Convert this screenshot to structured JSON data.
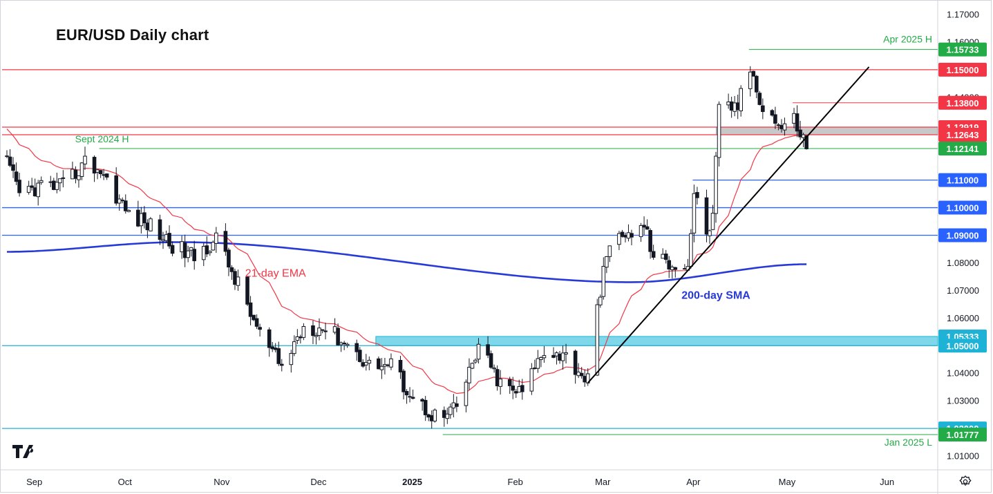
{
  "chart_data": {
    "type": "candlestick",
    "title": "EUR/USD Daily chart",
    "ylim": [
      1.005,
      1.1745
    ],
    "y_ticks": [
      "1.17000",
      "1.16000",
      "1.15000",
      "1.14000",
      "1.13000",
      "1.12000",
      "1.11000",
      "1.10000",
      "1.09000",
      "1.08000",
      "1.07000",
      "1.06000",
      "1.05000",
      "1.04000",
      "1.03000",
      "1.02000",
      "1.01000"
    ],
    "x_ticks": [
      {
        "label": "Sep",
        "date": "2024-09-02",
        "bold": false
      },
      {
        "label": "Oct",
        "date": "2024-10-01",
        "bold": false
      },
      {
        "label": "Nov",
        "date": "2024-11-01",
        "bold": false
      },
      {
        "label": "Dec",
        "date": "2024-12-02",
        "bold": false
      },
      {
        "label": "2025",
        "date": "2025-01-01",
        "bold": true
      },
      {
        "label": "Feb",
        "date": "2025-02-03",
        "bold": false
      },
      {
        "label": "Mar",
        "date": "2025-03-03",
        "bold": false
      },
      {
        "label": "Apr",
        "date": "2025-04-01",
        "bold": false
      },
      {
        "label": "May",
        "date": "2025-05-01",
        "bold": false
      },
      {
        "label": "Jun",
        "date": "2025-06-02",
        "bold": false
      }
    ],
    "x_start": "2024-08-26",
    "x_end": "2025-05-09",
    "candle_anchors": [
      {
        "date": "2024-08-26",
        "close": 1.116
      },
      {
        "date": "2024-08-30",
        "close": 1.105
      },
      {
        "date": "2024-09-06",
        "close": 1.108
      },
      {
        "date": "2024-09-13",
        "close": 1.1075
      },
      {
        "date": "2024-09-20",
        "close": 1.1165
      },
      {
        "date": "2024-09-25",
        "close": 1.1135
      },
      {
        "date": "2024-10-04",
        "close": 1.0975
      },
      {
        "date": "2024-10-11",
        "close": 1.0935
      },
      {
        "date": "2024-10-18",
        "close": 1.0865
      },
      {
        "date": "2024-10-25",
        "close": 1.082
      },
      {
        "date": "2024-11-01",
        "close": 1.089
      },
      {
        "date": "2024-11-08",
        "close": 1.072
      },
      {
        "date": "2024-11-15",
        "close": 1.054
      },
      {
        "date": "2024-11-22",
        "close": 1.042
      },
      {
        "date": "2024-11-29",
        "close": 1.057
      },
      {
        "date": "2024-12-06",
        "close": 1.0565
      },
      {
        "date": "2024-12-13",
        "close": 1.0505
      },
      {
        "date": "2024-12-20",
        "close": 1.043
      },
      {
        "date": "2024-12-27",
        "close": 1.043
      },
      {
        "date": "2025-01-03",
        "close": 1.031
      },
      {
        "date": "2025-01-10",
        "close": 1.0245
      },
      {
        "date": "2025-01-13",
        "close": 1.024
      },
      {
        "date": "2025-01-17",
        "close": 1.0275
      },
      {
        "date": "2025-01-24",
        "close": 1.0495
      },
      {
        "date": "2025-01-31",
        "close": 1.036
      },
      {
        "date": "2025-02-03",
        "close": 1.034
      },
      {
        "date": "2025-02-07",
        "close": 1.033
      },
      {
        "date": "2025-02-14",
        "close": 1.049
      },
      {
        "date": "2025-02-21",
        "close": 1.046
      },
      {
        "date": "2025-02-28",
        "close": 1.0375
      },
      {
        "date": "2025-03-05",
        "close": 1.079
      },
      {
        "date": "2025-03-07",
        "close": 1.0835
      },
      {
        "date": "2025-03-11",
        "close": 1.092
      },
      {
        "date": "2025-03-14",
        "close": 1.088
      },
      {
        "date": "2025-03-18",
        "close": 1.0945
      },
      {
        "date": "2025-03-21",
        "close": 1.0815
      },
      {
        "date": "2025-03-27",
        "close": 1.08
      },
      {
        "date": "2025-04-01",
        "close": 1.079
      },
      {
        "date": "2025-04-03",
        "close": 1.105
      },
      {
        "date": "2025-04-07",
        "close": 1.091
      },
      {
        "date": "2025-04-09",
        "close": 1.096
      },
      {
        "date": "2025-04-11",
        "close": 1.1355
      },
      {
        "date": "2025-04-17",
        "close": 1.137
      },
      {
        "date": "2025-04-21",
        "close": 1.1505
      },
      {
        "date": "2025-04-25",
        "close": 1.137
      },
      {
        "date": "2025-05-01",
        "close": 1.129
      },
      {
        "date": "2025-05-05",
        "close": 1.132
      },
      {
        "date": "2025-05-09",
        "close": 1.1225
      }
    ],
    "price_levels": [
      {
        "price": 1.15733,
        "label": "1.15733",
        "color": "#22ab46",
        "anchor": "2025-04-21"
      },
      {
        "price": 1.15,
        "label": "1.15000",
        "color": "#f23645"
      },
      {
        "price": 1.138,
        "label": "1.13800",
        "color": "#f23645",
        "anchor": "2025-05-05"
      },
      {
        "price": 1.12919,
        "label": "1.12919",
        "color": "#f23645"
      },
      {
        "price": 1.12643,
        "label": "1.12643",
        "color": "#f23645"
      },
      {
        "price": 1.12141,
        "label": "1.12141",
        "color": "#22ab46",
        "anchor": "2024-09-25"
      },
      {
        "price": 1.11,
        "label": "1.11000",
        "color": "#2962ff",
        "anchor": "2025-04-03"
      },
      {
        "price": 1.1,
        "label": "1.10000",
        "color": "#2962ff"
      },
      {
        "price": 1.09,
        "label": "1.09000",
        "color": "#2962ff"
      },
      {
        "price": 1.05333,
        "label": "1.05333",
        "color": "#1eb3d6",
        "anchor": "2024-12-23"
      },
      {
        "price": 1.05,
        "label": "1.05000",
        "color": "#1eb3d6"
      },
      {
        "price": 1.02,
        "label": "1.02000",
        "color": "#1eb3d6"
      },
      {
        "price": 1.01777,
        "label": "1.01777",
        "color": "#22ab46",
        "anchor": "2025-01-13"
      }
    ],
    "zones": [
      {
        "from": 1.05,
        "to": 1.05333,
        "start": "2024-12-23",
        "color": "#7fd8ea",
        "stroke": "#1eb3d6"
      },
      {
        "from": 1.12643,
        "to": 1.12919,
        "start": "2025-04-11",
        "color": "#c8c8c8",
        "stroke": "#9e9e9e"
      }
    ],
    "trendline": {
      "start_date": "2025-02-28",
      "start_price": 1.0365,
      "end_date": "2025-05-29",
      "end_price": 1.151,
      "color": "#000000"
    },
    "series": [
      {
        "name": "21-day EMA",
        "color": "#f23645",
        "label_date": "2024-11-20",
        "label_price": 1.075
      },
      {
        "name": "200-day SMA",
        "color": "#2739d6",
        "label_date": "2025-04-10",
        "label_price": 1.067
      }
    ],
    "annotations": [
      {
        "text": "Apr 2025 H",
        "color": "#22ab46"
      },
      {
        "text": "Sept 2024 H",
        "color": "#22ab46"
      },
      {
        "text": "Jan 2025 L",
        "color": "#22ab46"
      }
    ]
  }
}
